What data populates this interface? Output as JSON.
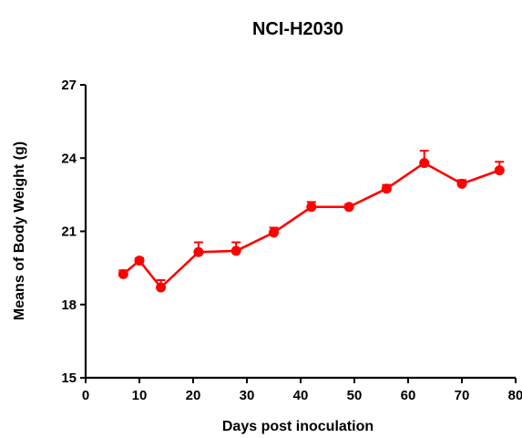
{
  "chart_data": {
    "type": "line",
    "title": "NCI-H2030",
    "xlabel": "Days post inoculation",
    "ylabel": "Means of Body Weight (g)",
    "xlim": [
      0,
      80
    ],
    "ylim": [
      15,
      27
    ],
    "xticks": [
      0,
      10,
      20,
      30,
      40,
      50,
      60,
      70,
      80
    ],
    "yticks": [
      15,
      18,
      21,
      24,
      27
    ],
    "grid": false,
    "legend": "none",
    "color": "#ff0000",
    "series": [
      {
        "x": [
          7,
          10,
          14,
          21,
          28,
          35,
          42,
          49,
          56,
          63,
          70,
          77
        ],
        "y": [
          19.25,
          19.8,
          18.7,
          20.15,
          20.2,
          20.95,
          22.0,
          22.0,
          22.75,
          23.8,
          22.95,
          23.5
        ],
        "error": [
          0.15,
          0.1,
          0.3,
          0.4,
          0.35,
          0.2,
          0.2,
          0.1,
          0.15,
          0.5,
          0.15,
          0.35
        ]
      }
    ]
  }
}
